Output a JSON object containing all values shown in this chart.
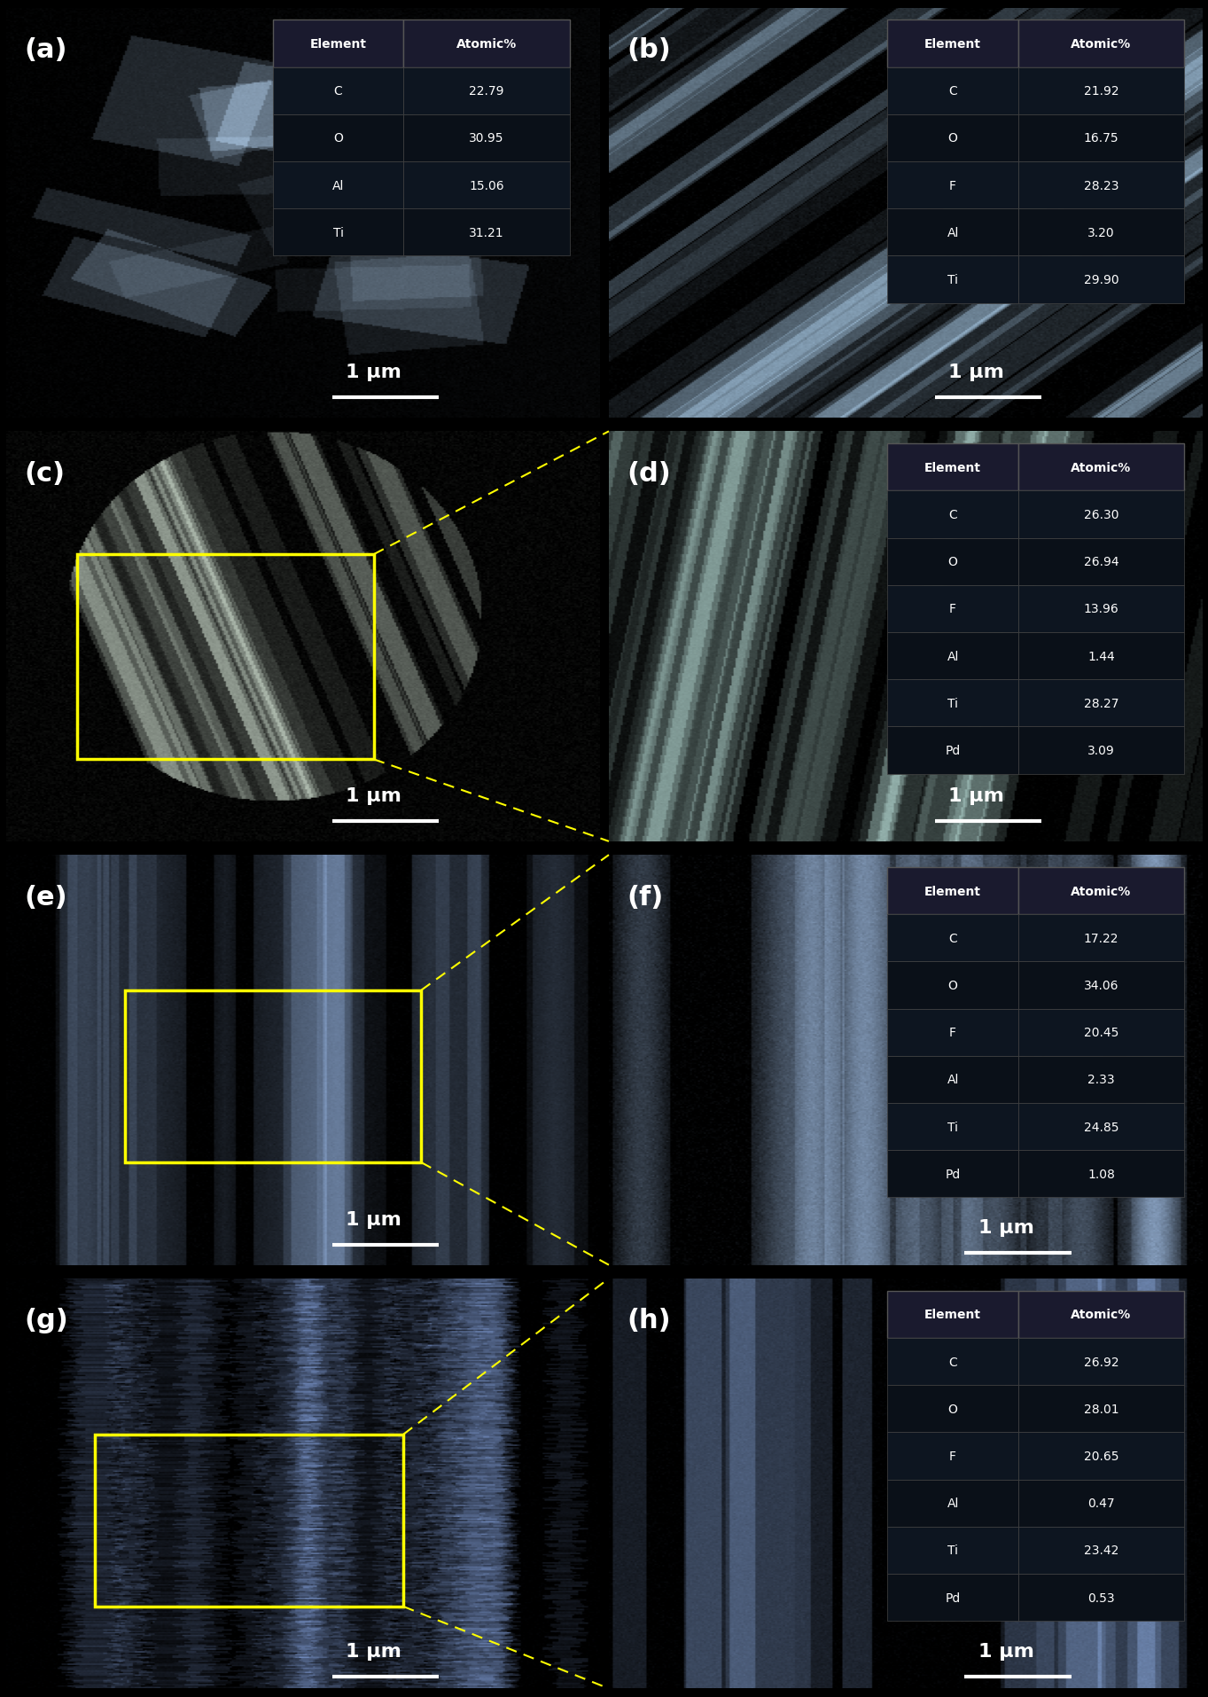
{
  "figure_width": 13.63,
  "figure_height": 19.15,
  "background_color": "#000000",
  "panel_labels": [
    "(a)",
    "(b)",
    "(c)",
    "(d)",
    "(e)",
    "(f)",
    "(g)",
    "(h)"
  ],
  "label_color": "white",
  "label_fontsize": 22,
  "scale_bar_text": "1 μm",
  "scale_bar_color": "white",
  "scale_bar_fontsize": 16,
  "table_bg_color": "#1a1a2e",
  "table_text_color": "white",
  "table_header_color": "#2a2a4e",
  "yellow_box_color": "#ffff00",
  "panels": {
    "a": {
      "row": 0,
      "col": 0,
      "table": {
        "headers": [
          "Element",
          "Atomic%"
        ],
        "rows": [
          [
            "C",
            "22.79"
          ],
          [
            "O",
            "30.95"
          ],
          [
            "Al",
            "15.06"
          ],
          [
            "Ti",
            "31.21"
          ]
        ]
      },
      "scale_bar": true,
      "yellow_box": false,
      "dashed_line": false,
      "img_color_dark": "#1c2a3a",
      "img_color_light": "#8a9aaa"
    },
    "b": {
      "row": 0,
      "col": 1,
      "table": {
        "headers": [
          "Element",
          "Atomic%"
        ],
        "rows": [
          [
            "C",
            "21.92"
          ],
          [
            "O",
            "16.75"
          ],
          [
            "F",
            "28.23"
          ],
          [
            "Al",
            "3.20"
          ],
          [
            "Ti",
            "29.90"
          ]
        ]
      },
      "scale_bar": true,
      "yellow_box": false,
      "dashed_line": false,
      "img_color_dark": "#0a1520",
      "img_color_light": "#9aaabc"
    },
    "c": {
      "row": 1,
      "col": 0,
      "table": null,
      "scale_bar": true,
      "yellow_box": true,
      "dashed_line": true,
      "img_color_dark": "#0a0f0a",
      "img_color_light": "#c8d0c0"
    },
    "d": {
      "row": 1,
      "col": 1,
      "table": {
        "headers": [
          "Element",
          "Atomic%"
        ],
        "rows": [
          [
            "C",
            "26.30"
          ],
          [
            "O",
            "26.94"
          ],
          [
            "F",
            "13.96"
          ],
          [
            "Al",
            "1.44"
          ],
          [
            "Ti",
            "28.27"
          ],
          [
            "Pd",
            "3.09"
          ]
        ]
      },
      "scale_bar": true,
      "yellow_box": false,
      "dashed_line": false,
      "img_color_dark": "#0a1010",
      "img_color_light": "#a8b8b0"
    },
    "e": {
      "row": 2,
      "col": 0,
      "table": null,
      "scale_bar": true,
      "yellow_box": true,
      "dashed_line": true,
      "img_color_dark": "#050a10",
      "img_color_light": "#7888a0"
    },
    "f": {
      "row": 2,
      "col": 1,
      "table": {
        "headers": [
          "Element",
          "Atomic%"
        ],
        "rows": [
          [
            "C",
            "17.22"
          ],
          [
            "O",
            "34.06"
          ],
          [
            "F",
            "20.45"
          ],
          [
            "Al",
            "2.33"
          ],
          [
            "Ti",
            "24.85"
          ],
          [
            "Pd",
            "1.08"
          ]
        ]
      },
      "scale_bar": true,
      "yellow_box": false,
      "dashed_line": false,
      "img_color_dark": "#0a1018",
      "img_color_light": "#8898a8"
    },
    "g": {
      "row": 3,
      "col": 0,
      "table": null,
      "scale_bar": true,
      "yellow_box": true,
      "dashed_line": true,
      "img_color_dark": "#050808",
      "img_color_light": "#6878a0"
    },
    "h": {
      "row": 3,
      "col": 1,
      "table": {
        "headers": [
          "Element",
          "Atomic%"
        ],
        "rows": [
          [
            "C",
            "26.92"
          ],
          [
            "O",
            "28.01"
          ],
          [
            "F",
            "20.65"
          ],
          [
            "Al",
            "0.47"
          ],
          [
            "Ti",
            "23.42"
          ],
          [
            "Pd",
            "0.53"
          ]
        ]
      },
      "scale_bar": true,
      "yellow_box": false,
      "dashed_line": false,
      "img_color_dark": "#080c10",
      "img_color_light": "#6070a0"
    }
  }
}
